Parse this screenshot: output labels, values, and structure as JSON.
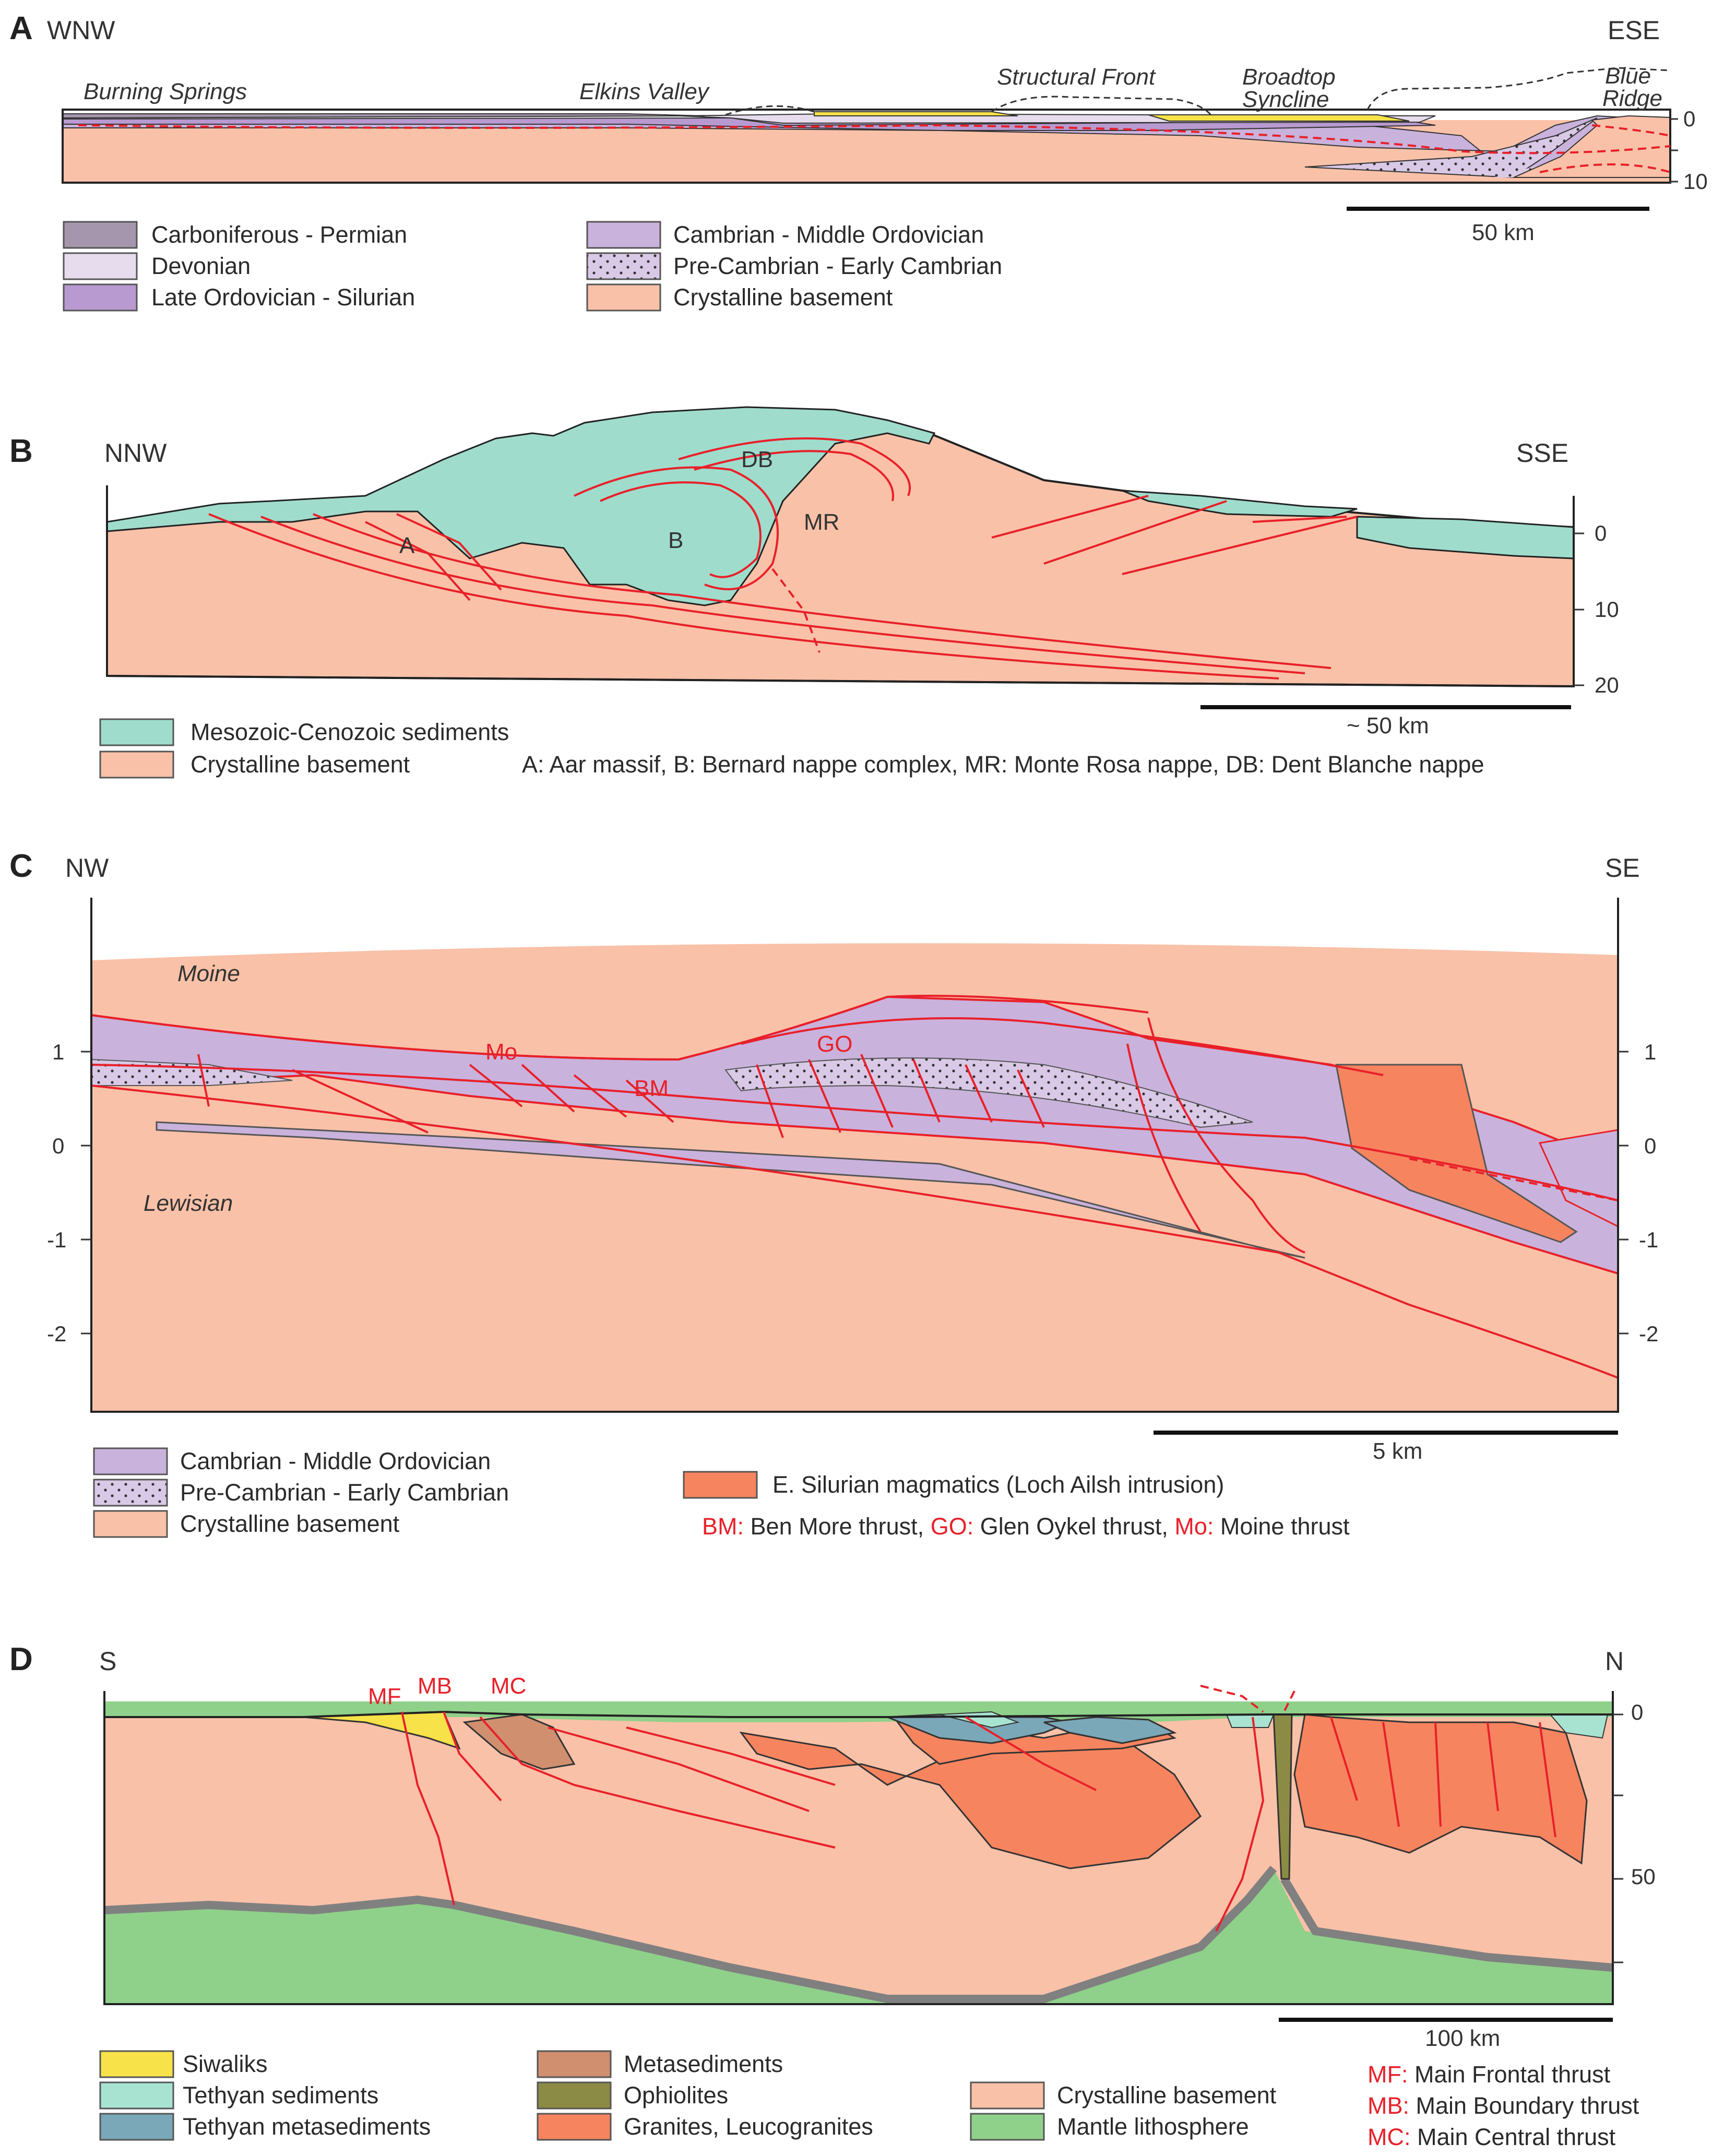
{
  "colors": {
    "crystalline": "#f9c1a8",
    "meso_cenozoic": "#9fdccb",
    "cambrian_ordovician": "#c9b3dc",
    "precambrian": "#d9c8e6",
    "late_ord_silurian": "#b89ad1",
    "devonian": "#e6dcee",
    "carboniferous_permian": "#a596ad",
    "siwaliks": "#f7e24a",
    "tethyan_sed": "#a8e2d0",
    "tethyan_meta": "#7ba8b8",
    "metasediments": "#d08f6e",
    "ophiolites": "#8c8b45",
    "granites": "#f5845f",
    "mantle": "#8fd08a",
    "silurian_magmatics": "#f5845f",
    "fault_red": "#e8202a"
  },
  "panels": {
    "a": {
      "label": "A",
      "dir_left": "WNW",
      "dir_right": "ESE",
      "locations": [
        "Burning Springs",
        "Elkins Valley",
        "Structural Front",
        "Broadtop",
        "Syncline",
        "Blue",
        "Ridge"
      ],
      "depth_ticks": [
        "0",
        "10"
      ],
      "scale": "50 km",
      "legend": [
        "Carboniferous - Permian",
        "Devonian",
        "Late Ordovician - Silurian",
        "Cambrian - Middle Ordovician",
        "Pre-Cambrian - Early Cambrian",
        "Crystalline basement"
      ]
    },
    "b": {
      "label": "B",
      "dir_left": "NNW",
      "dir_right": "SSE",
      "inline": [
        "A",
        "B",
        "MR",
        "DB"
      ],
      "depth_ticks": [
        "0",
        "10",
        "20"
      ],
      "scale": "~ 50 km",
      "legend": [
        "Mesozoic-Cenozoic sediments",
        "Crystalline basement"
      ],
      "note": "A: Aar massif, B: Bernard nappe complex, MR: Monte Rosa nappe, DB: Dent Blanche nappe"
    },
    "c": {
      "label": "C",
      "dir_left": "NW",
      "dir_right": "SE",
      "units": [
        "Moine",
        "Lewisian"
      ],
      "thrusts": [
        "Mo",
        "BM",
        "GO"
      ],
      "depth_ticks": [
        "1",
        "0",
        "-1",
        "-2"
      ],
      "scale": "5 km",
      "legend": [
        "Cambrian - Middle Ordovician",
        "Pre-Cambrian - Early Cambrian",
        "Crystalline basement",
        "E. Silurian magmatics (Loch Ailsh intrusion)"
      ],
      "abbrev": [
        {
          "code": "BM:",
          "name": " Ben More thrust,"
        },
        {
          "code": " GO:",
          "name": " Glen Oykel thrust,"
        },
        {
          "code": " Mo:",
          "name": " Moine thrust"
        }
      ]
    },
    "d": {
      "label": "D",
      "dir_left": "S",
      "dir_right": "N",
      "thrusts": [
        "MF",
        "MB",
        "MC"
      ],
      "depth_ticks": [
        "0",
        "50"
      ],
      "scale": "100 km",
      "legend": [
        "Siwaliks",
        "Tethyan sediments",
        "Tethyan metasediments",
        "Metasediments",
        "Ophiolites",
        "Granites, Leucogranites",
        "Crystalline basement",
        "Mantle lithosphere"
      ],
      "abbrev": [
        {
          "code": "MF:",
          "name": " Main Frontal thrust"
        },
        {
          "code": "MB:",
          "name": " Main Boundary thrust"
        },
        {
          "code": "MC:",
          "name": " Main Central thrust"
        }
      ]
    }
  }
}
